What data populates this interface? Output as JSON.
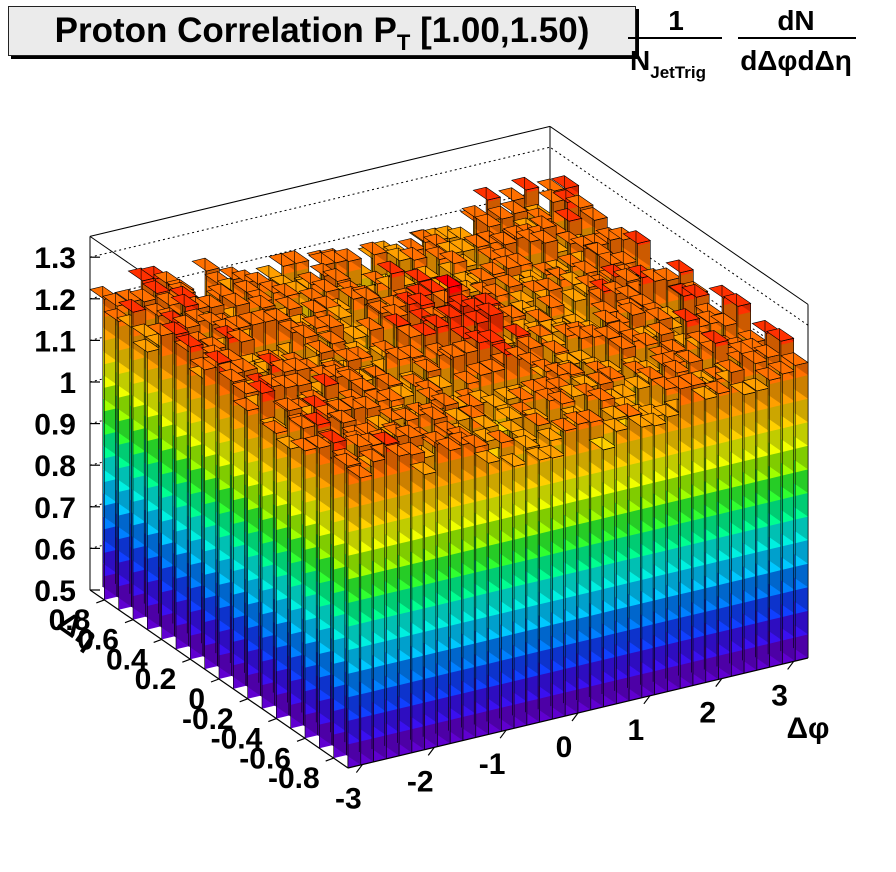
{
  "title": {
    "main": "Proton Correlation P",
    "sub": "T",
    "range": "[1.00,1.50)"
  },
  "zlabel": {
    "frac1_num": "1",
    "frac1_den": "N",
    "frac1_den_sub": "JetTrig",
    "frac2_num": "dN",
    "frac2_den": "dΔφdΔη"
  },
  "chart_data": {
    "type": "lego3d",
    "title": "Proton Correlation P_T [1.00,1.50)",
    "xlabel": "Δφ",
    "ylabel": "Δη",
    "zlabel": "1/N_JetTrig dN/dΔφdΔη",
    "x_ticks": [
      "-3",
      "-2",
      "-1",
      "0",
      "1",
      "2",
      "3"
    ],
    "x_tick_values": [
      -3,
      -2,
      -1,
      0,
      1,
      2,
      3
    ],
    "y_ticks": [
      "-0.8",
      "-0.6",
      "-0.4",
      "-0.2",
      "0",
      "0.2",
      "0.4",
      "0.6",
      "0.8"
    ],
    "y_tick_values": [
      -0.8,
      -0.6,
      -0.4,
      -0.2,
      0,
      0.2,
      0.4,
      0.6,
      0.8
    ],
    "z_ticks": [
      "0.5",
      "0.6",
      "0.7",
      "0.8",
      "0.9",
      "1",
      "1.1",
      "1.2",
      "1.3"
    ],
    "z_tick_values": [
      0.5,
      0.6,
      0.7,
      0.8,
      0.9,
      1.0,
      1.1,
      1.2,
      1.3
    ],
    "xlim": [
      -3.2,
      3.2
    ],
    "ylim": [
      -0.9,
      0.9
    ],
    "zlim": [
      0.5,
      1.35
    ],
    "x_bins": 36,
    "y_bins": 18,
    "palette": [
      "#6000d0",
      "#3a10f0",
      "#1040ff",
      "#0080ff",
      "#00c8ff",
      "#00f0e0",
      "#00ff90",
      "#30ff30",
      "#a0ff00",
      "#f0ff00",
      "#ffd000",
      "#ffa000",
      "#ff7000",
      "#ff3000",
      "#ff0000"
    ],
    "level_summary": {
      "typical_bin_value": 1.15,
      "near_side_peak": 1.3,
      "away_edge_values": 1.22
    }
  }
}
